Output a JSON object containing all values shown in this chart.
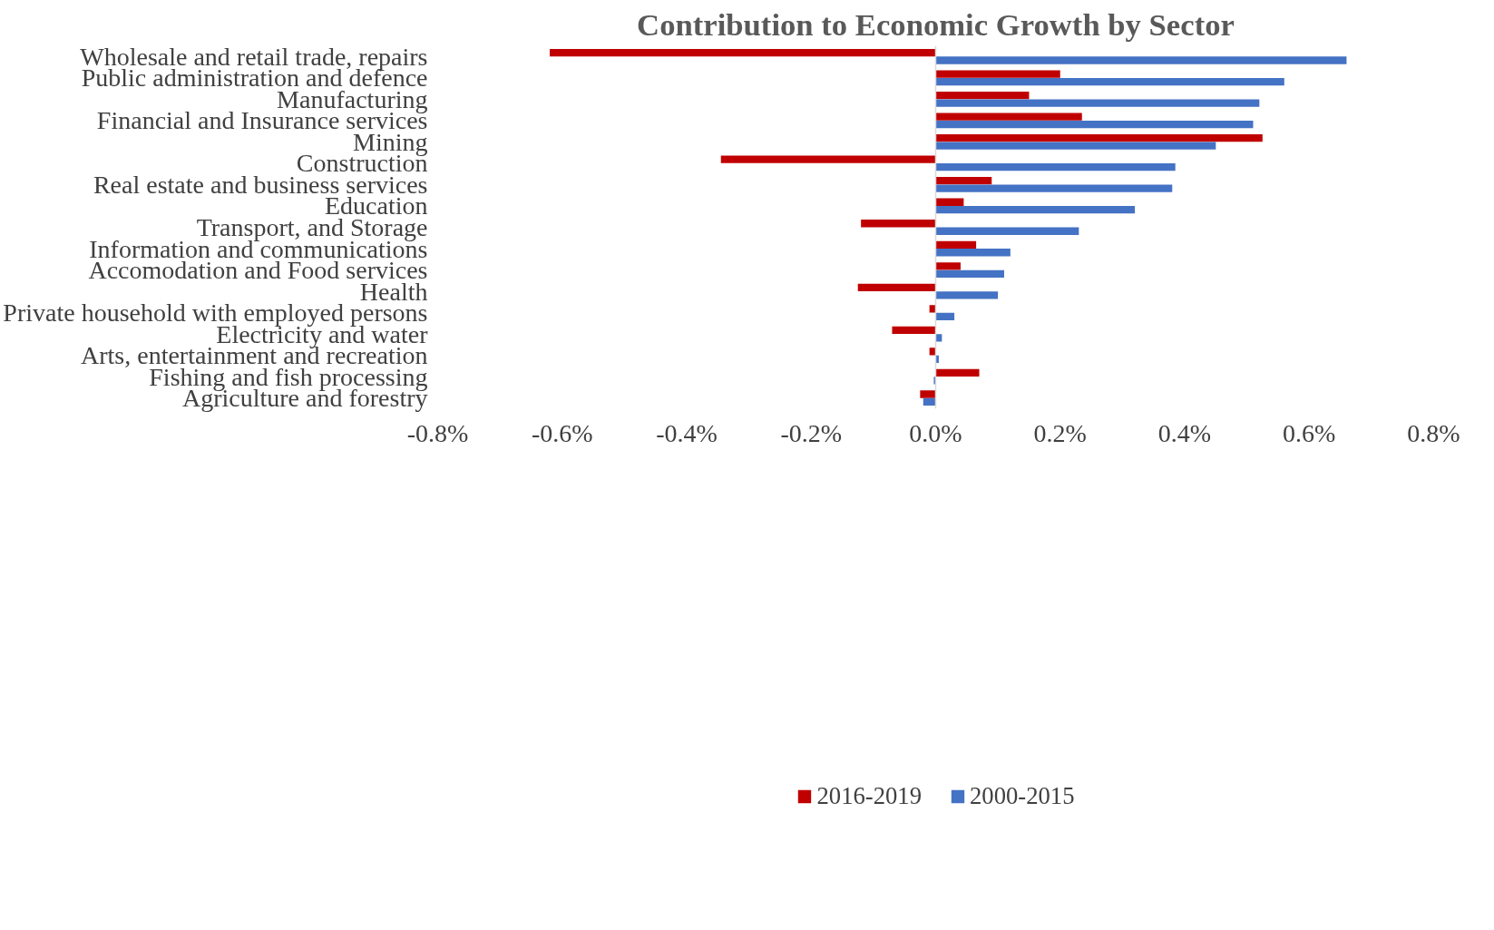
{
  "chart_data": {
    "type": "bar",
    "orientation": "horizontal",
    "title": "Contribution to Economic Growth by Sector",
    "categories": [
      "Wholesale and retail trade, repairs",
      "Public administration and defence",
      "Manufacturing",
      "Financial and Insurance services",
      "Mining",
      "Construction",
      "Real estate and business services",
      "Education",
      "Transport, and Storage",
      "Information and communications",
      "Accomodation and Food services",
      "Health",
      "Private household with employed persons",
      "Electricity and water",
      "Arts, entertainment and recreation",
      "Fishing and fish processing",
      "Agriculture and forestry"
    ],
    "series": [
      {
        "name": "2016-2019",
        "color": "#c00000",
        "values": [
          -0.62,
          0.2,
          0.15,
          0.235,
          0.525,
          -0.345,
          0.09,
          0.045,
          -0.12,
          0.065,
          0.04,
          -0.125,
          -0.01,
          -0.07,
          -0.01,
          0.07,
          -0.025
        ]
      },
      {
        "name": "2000-2015",
        "color": "#4472c4",
        "values": [
          0.66,
          0.56,
          0.52,
          0.51,
          0.45,
          0.385,
          0.38,
          0.32,
          0.23,
          0.12,
          0.11,
          0.1,
          0.03,
          0.01,
          0.005,
          -0.003,
          -0.02
        ]
      }
    ],
    "xlim": [
      -0.8,
      0.8
    ],
    "xticks": [
      {
        "value": -0.8,
        "label": "-0.8%"
      },
      {
        "value": -0.6,
        "label": "-0.6%"
      },
      {
        "value": -0.4,
        "label": "-0.4%"
      },
      {
        "value": -0.2,
        "label": "-0.2%"
      },
      {
        "value": 0,
        "label": "0.0%"
      },
      {
        "value": 0.2,
        "label": "0.2%"
      },
      {
        "value": 0.4,
        "label": "0.4%"
      },
      {
        "value": 0.6,
        "label": "0.6%"
      },
      {
        "value": 0.8,
        "label": "0.8%"
      }
    ],
    "ref_lines": [
      {
        "axis": "x",
        "value": 0,
        "color": "#d9d9d9"
      }
    ],
    "grid": false,
    "legend": "bottom"
  }
}
